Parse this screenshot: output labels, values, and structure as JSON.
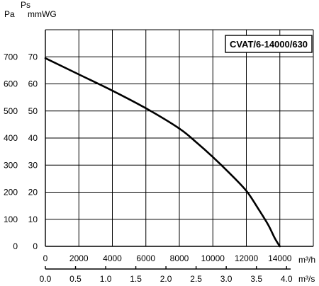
{
  "chart_data": {
    "type": "line",
    "title": "",
    "model_label": "CVAT/6-14000/630",
    "y_axis": {
      "unit_pa": "Pa",
      "ps_label": "Ps",
      "unit_mmwg": "mmWG",
      "pa_ticks": [
        "0",
        "100",
        "200",
        "300",
        "400",
        "500",
        "600",
        "700"
      ],
      "mmwg_ticks": [
        "0",
        "10",
        "20",
        "30",
        "40",
        "50",
        "60",
        "70"
      ],
      "ylim_pa": [
        0,
        800
      ]
    },
    "x_axis": {
      "unit_m3h": "m³/h",
      "unit_m3s": "m³/s",
      "m3h_ticks": [
        "0",
        "2000",
        "4000",
        "6000",
        "8000",
        "10000",
        "12000",
        "14000"
      ],
      "m3s_ticks": [
        "0.0",
        "0.5",
        "1.0",
        "1.5",
        "2.0",
        "2.5",
        "3.0",
        "3.5",
        "4.0"
      ],
      "xlim_m3h": [
        0,
        16000
      ],
      "m3s_to_m3h": 3600
    },
    "grid": true,
    "series": [
      {
        "name": "",
        "x": [
          0,
          2000,
          4000,
          6000,
          8000,
          9000,
          10000,
          11000,
          12000,
          12700,
          13300,
          13700,
          14000
        ],
        "y": [
          695,
          635,
          575,
          510,
          435,
          385,
          330,
          270,
          205,
          140,
          80,
          30,
          0
        ]
      }
    ]
  }
}
